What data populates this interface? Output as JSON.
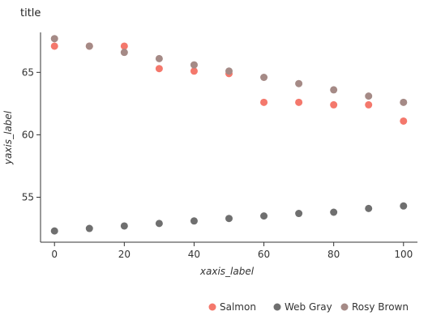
{
  "chart_data": {
    "type": "scatter",
    "title": "title",
    "xlabel": "xaxis_label",
    "ylabel": "yaxis_label",
    "xlim": [
      -4,
      104
    ],
    "ylim": [
      51.4,
      68.2
    ],
    "xticks": [
      0,
      20,
      40,
      60,
      80,
      100
    ],
    "yticks": [
      55,
      60,
      65
    ],
    "grid": false,
    "legend_position": "bottom",
    "series": [
      {
        "name": "Salmon",
        "color": "#F4786C",
        "x": [
          0,
          10,
          20,
          30,
          40,
          50,
          60,
          70,
          80,
          90,
          100
        ],
        "y": [
          67.1,
          67.1,
          67.1,
          65.3,
          65.1,
          64.9,
          62.6,
          62.6,
          62.4,
          62.4,
          61.1
        ]
      },
      {
        "name": "Web Gray",
        "color": "#6F6F6F",
        "x": [
          0,
          10,
          20,
          30,
          40,
          50,
          60,
          70,
          80,
          90,
          100
        ],
        "y": [
          52.3,
          52.5,
          52.7,
          52.9,
          53.1,
          53.3,
          53.5,
          53.7,
          53.8,
          54.1,
          54.3
        ]
      },
      {
        "name": "Rosy Brown",
        "color": "#A58A86",
        "x": [
          0,
          10,
          20,
          30,
          40,
          50,
          60,
          70,
          80,
          90,
          100
        ],
        "y": [
          67.7,
          67.1,
          66.6,
          66.1,
          65.6,
          65.1,
          64.6,
          64.1,
          63.6,
          63.1,
          62.6
        ]
      }
    ]
  }
}
